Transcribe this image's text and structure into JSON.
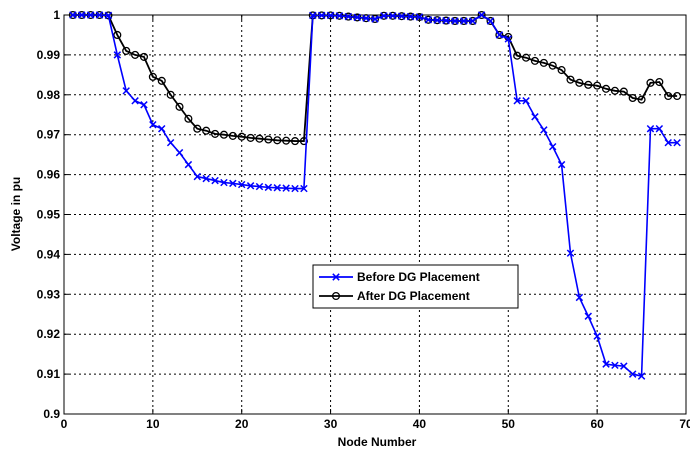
{
  "chart_data": {
    "type": "line",
    "title": "",
    "xlabel": "Node Number",
    "ylabel": "Voltage in pu",
    "xlim": [
      0,
      70
    ],
    "ylim": [
      0.9,
      1.0
    ],
    "xticks": [
      0,
      10,
      20,
      30,
      40,
      50,
      60,
      70
    ],
    "xtick_labels": [
      "0",
      "10",
      "20",
      "30",
      "40",
      "50",
      "60",
      "70"
    ],
    "yticks": [
      0.9,
      0.91,
      0.92,
      0.93,
      0.94,
      0.95,
      0.96,
      0.97,
      0.98,
      0.99,
      1.0
    ],
    "ytick_labels": [
      "0.9",
      "0.91",
      "0.92",
      "0.93",
      "0.94",
      "0.95",
      "0.96",
      "0.97",
      "0.98",
      "0.99",
      "1"
    ],
    "grid": true,
    "legend_position": "center-right",
    "series": [
      {
        "name": "Before DG Placement",
        "color": "#0000ff",
        "marker": "x",
        "x": [
          1,
          2,
          3,
          4,
          5,
          6,
          7,
          8,
          9,
          10,
          11,
          12,
          13,
          14,
          15,
          16,
          17,
          18,
          19,
          20,
          21,
          22,
          23,
          24,
          25,
          26,
          27,
          28,
          29,
          30,
          31,
          32,
          33,
          34,
          35,
          36,
          37,
          38,
          39,
          40,
          41,
          42,
          43,
          44,
          45,
          46,
          47,
          48,
          49,
          50,
          51,
          52,
          53,
          54,
          55,
          56,
          57,
          58,
          59,
          60,
          61,
          62,
          63,
          64,
          65,
          66,
          67,
          68,
          69
        ],
        "y": [
          1.0,
          1.0,
          1.0,
          1.0,
          0.9999,
          0.99,
          0.981,
          0.9785,
          0.9775,
          0.9725,
          0.9715,
          0.968,
          0.9655,
          0.9625,
          0.9595,
          0.959,
          0.9585,
          0.958,
          0.9578,
          0.9575,
          0.9572,
          0.957,
          0.9568,
          0.9567,
          0.9566,
          0.9565,
          0.9565,
          0.9999,
          0.9999,
          0.9999,
          0.9998,
          0.9996,
          0.9994,
          0.9992,
          0.999,
          0.9998,
          0.9998,
          0.9997,
          0.9996,
          0.9995,
          0.9988,
          0.9987,
          0.9986,
          0.9985,
          0.9985,
          0.9985,
          1.0,
          0.9985,
          0.995,
          0.994,
          0.9785,
          0.9785,
          0.9745,
          0.9712,
          0.967,
          0.9625,
          0.9403,
          0.9292,
          0.9245,
          0.9195,
          0.9125,
          0.9122,
          0.912,
          0.91,
          0.9095,
          0.9715,
          0.9715,
          0.968,
          0.968
        ]
      },
      {
        "name": "After DG Placement",
        "color": "#000000",
        "marker": "o",
        "x": [
          1,
          2,
          3,
          4,
          5,
          6,
          7,
          8,
          9,
          10,
          11,
          12,
          13,
          14,
          15,
          16,
          17,
          18,
          19,
          20,
          21,
          22,
          23,
          24,
          25,
          26,
          27,
          28,
          29,
          30,
          31,
          32,
          33,
          34,
          35,
          36,
          37,
          38,
          39,
          40,
          41,
          42,
          43,
          44,
          45,
          46,
          47,
          48,
          49,
          50,
          51,
          52,
          53,
          54,
          55,
          56,
          57,
          58,
          59,
          60,
          61,
          62,
          63,
          64,
          65,
          66,
          67,
          68,
          69
        ],
        "y": [
          1.0,
          1.0,
          1.0,
          1.0,
          0.9999,
          0.995,
          0.991,
          0.99,
          0.9895,
          0.9845,
          0.9835,
          0.98,
          0.977,
          0.974,
          0.9715,
          0.971,
          0.9702,
          0.97,
          0.9697,
          0.9695,
          0.9692,
          0.969,
          0.9688,
          0.9686,
          0.9685,
          0.9684,
          0.9684,
          0.9999,
          0.9999,
          0.9999,
          0.9998,
          0.9996,
          0.9994,
          0.9992,
          0.999,
          0.9998,
          0.9998,
          0.9997,
          0.9996,
          0.9995,
          0.9988,
          0.9987,
          0.9986,
          0.9985,
          0.9985,
          0.9985,
          1.0,
          0.9985,
          0.995,
          0.9945,
          0.9898,
          0.9893,
          0.9885,
          0.988,
          0.9873,
          0.9862,
          0.9838,
          0.983,
          0.9825,
          0.9823,
          0.9815,
          0.981,
          0.9808,
          0.9792,
          0.9788,
          0.983,
          0.9832,
          0.9797,
          0.9797
        ]
      }
    ]
  }
}
